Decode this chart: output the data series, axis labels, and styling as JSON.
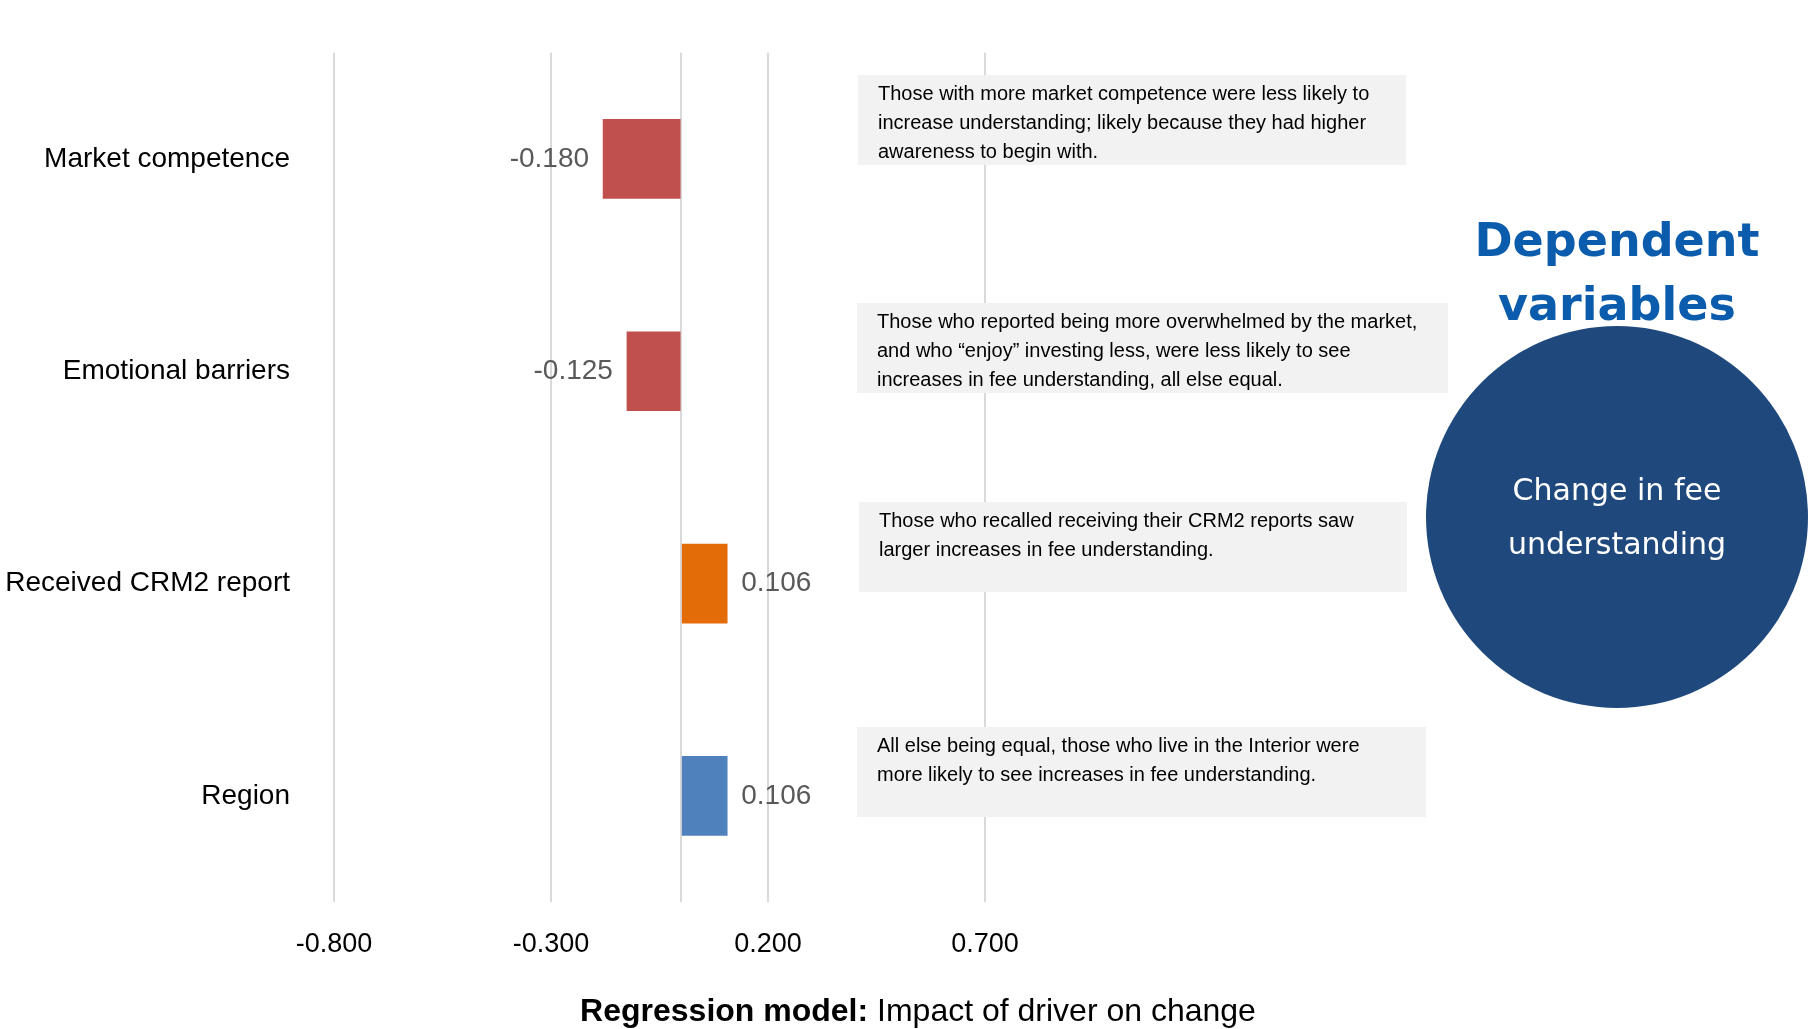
{
  "chart_data": {
    "type": "bar",
    "orientation": "horizontal",
    "xlabel": "Regression model: Impact of driver on change",
    "categories": [
      "Market competence",
      "Emotional barriers",
      "Received CRM2 report",
      "Region"
    ],
    "values": [
      -0.18,
      -0.125,
      0.106,
      0.106
    ],
    "value_labels": [
      "-0.180",
      "-0.125",
      "0.106",
      "0.106"
    ],
    "colors": [
      "#c0504d",
      "#c0504d",
      "#e36c09",
      "#4f81bd"
    ],
    "xlim": [
      -0.8,
      0.7
    ],
    "xticks": [
      {
        "value": -0.8,
        "label": "-0.800"
      },
      {
        "value": -0.3,
        "label": "-0.300"
      },
      {
        "value": 0,
        "label": null
      },
      {
        "value": 0.2,
        "label": "0.200"
      },
      {
        "value": 0.7,
        "label": "0.700"
      }
    ],
    "grid": "x",
    "legend": false,
    "annotations": [
      "Those with more market competence were less likely to increase understanding; likely because they had higher awareness to begin with.",
      "Those who reported being more overwhelmed by the market, and who “enjoy” investing less, were less likely to see increases in fee understanding, all else equal.",
      "Those who recalled receiving their CRM2 reports saw larger increases in fee understanding.",
      "All else being equal, those who live in the Interior were more likely to see increases in fee understanding.",
      "Dependent variables",
      "Change in fee understanding"
    ]
  }
}
